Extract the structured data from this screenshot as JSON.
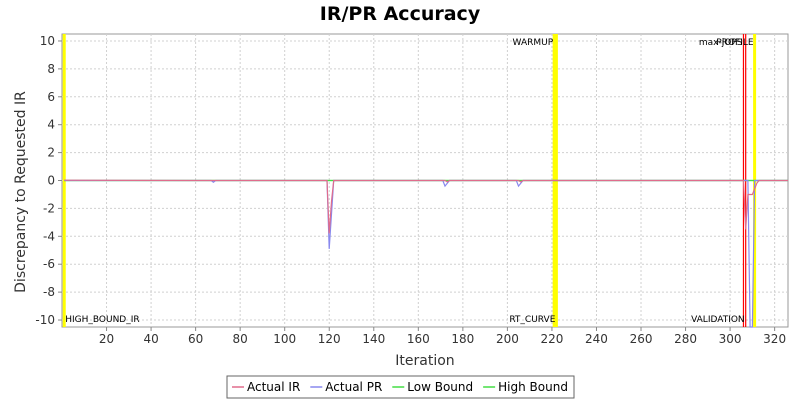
{
  "chart_data": {
    "type": "line",
    "title": "IR/PR Accuracy",
    "xlabel": "Iteration",
    "ylabel": "Discrepancy to Requested IR",
    "xlim": [
      0,
      326
    ],
    "ylim": [
      -10.5,
      10.5
    ],
    "x_ticks": [
      20,
      40,
      60,
      80,
      100,
      120,
      140,
      160,
      180,
      200,
      220,
      240,
      260,
      280,
      300,
      320
    ],
    "y_ticks": [
      10,
      8,
      6,
      4,
      2,
      0,
      -2,
      -4,
      -6,
      -8,
      -10
    ],
    "grid": true,
    "legend_position": "bottom",
    "series": [
      {
        "name": "Actual IR",
        "color": "#e06c8c",
        "points": [
          [
            1,
            0.02
          ],
          [
            60,
            0
          ],
          [
            119,
            0
          ],
          [
            120,
            -3.8
          ],
          [
            121,
            -1.5
          ],
          [
            122,
            0
          ],
          [
            172,
            0
          ],
          [
            173,
            -0.1
          ],
          [
            174,
            0
          ],
          [
            205,
            0
          ],
          [
            206,
            -0.1
          ],
          [
            207,
            0
          ],
          [
            220,
            0
          ],
          [
            306,
            0
          ],
          [
            307,
            -3.5
          ],
          [
            308,
            -1
          ],
          [
            310,
            -1
          ],
          [
            312,
            -0.2
          ],
          [
            313,
            0
          ],
          [
            326,
            0
          ]
        ]
      },
      {
        "name": "Actual PR",
        "color": "#8888ee",
        "points": [
          [
            1,
            0
          ],
          [
            67,
            0
          ],
          [
            68,
            -0.12
          ],
          [
            69,
            0
          ],
          [
            119,
            0
          ],
          [
            120,
            -4.9
          ],
          [
            122,
            0
          ],
          [
            171,
            0
          ],
          [
            172,
            -0.4
          ],
          [
            174,
            0
          ],
          [
            204,
            0
          ],
          [
            205,
            -0.4
          ],
          [
            207,
            0
          ],
          [
            220,
            0
          ],
          [
            308,
            0
          ],
          [
            309,
            -10.5
          ],
          [
            310,
            -10.5
          ],
          [
            311,
            0
          ],
          [
            326,
            0
          ]
        ]
      },
      {
        "name": "Low Bound",
        "color": "#44dd44",
        "points": [
          [
            1,
            0
          ],
          [
            326,
            0
          ]
        ]
      },
      {
        "name": "High Bound",
        "color": "#44dd44",
        "points": [
          [
            1,
            0
          ],
          [
            326,
            0
          ]
        ]
      }
    ],
    "markers": [
      {
        "label": "HIGH_BOUND_IR",
        "x": 1,
        "color": "#ffff00",
        "label_pos": "bottom"
      },
      {
        "label": "WARMUP",
        "x": 221,
        "color": "#ffff00",
        "label_pos": "top"
      },
      {
        "label": "RT_CURVE",
        "x": 222,
        "color": "#ffff00",
        "label_pos": "bottom"
      },
      {
        "label": "max-jOPS",
        "x": 306,
        "color": "#ff0000",
        "label_pos": "top"
      },
      {
        "label": "VALIDATION",
        "x": 307,
        "color": "#ff0000",
        "label_pos": "bottom"
      },
      {
        "label": "PROFILE",
        "x": 311,
        "color": "#ffff00",
        "label_pos": "top"
      }
    ]
  }
}
